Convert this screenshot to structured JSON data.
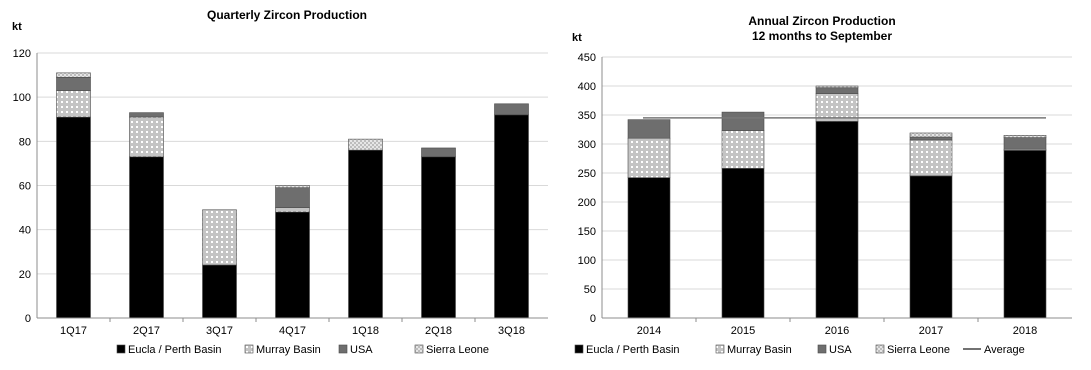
{
  "colors": {
    "eucla": "#000000",
    "murray": "#c4c4c4",
    "usa": "#6e6e6e",
    "sierra": "#dedede",
    "average": "#777777",
    "axis": "#8c8c8c",
    "grid": "#d9d9d9"
  },
  "chart_data": [
    {
      "type": "bar",
      "stacked": true,
      "title": "Quarterly Zircon Production",
      "ylabel": "kt",
      "xlabel": "",
      "ylim": [
        0,
        120
      ],
      "yticks": [
        0,
        20,
        40,
        60,
        80,
        100,
        120
      ],
      "grid": true,
      "legend": "bottom",
      "categories": [
        "1Q17",
        "2Q17",
        "3Q17",
        "4Q17",
        "1Q18",
        "2Q18",
        "3Q18"
      ],
      "series": [
        {
          "name": "Eucla / Perth Basin",
          "color_key": "eucla",
          "pattern": "solid",
          "values": [
            91,
            73,
            24,
            48,
            76,
            73,
            92
          ]
        },
        {
          "name": "Murray Basin",
          "color_key": "murray",
          "pattern": "dots",
          "values": [
            12,
            18,
            25,
            2,
            0,
            0,
            0
          ]
        },
        {
          "name": "USA",
          "color_key": "usa",
          "pattern": "solid",
          "values": [
            6,
            2,
            0,
            9,
            0,
            4,
            5
          ]
        },
        {
          "name": "Sierra Leone",
          "color_key": "sierra",
          "pattern": "hatch",
          "values": [
            2,
            0,
            0,
            1,
            5,
            0,
            0
          ]
        }
      ]
    },
    {
      "type": "bar",
      "stacked": true,
      "title": "Annual Zircon Production",
      "subtitle": "12 months to September",
      "ylabel": "kt",
      "xlabel": "",
      "ylim": [
        0,
        450
      ],
      "yticks": [
        0,
        50,
        100,
        150,
        200,
        250,
        300,
        350,
        400,
        450
      ],
      "grid": true,
      "legend": "bottom",
      "categories": [
        "2014",
        "2015",
        "2016",
        "2017",
        "2018"
      ],
      "series": [
        {
          "name": "Eucla / Perth Basin",
          "color_key": "eucla",
          "pattern": "solid",
          "values": [
            242,
            258,
            339,
            245,
            289
          ]
        },
        {
          "name": "Murray Basin",
          "color_key": "murray",
          "pattern": "dots",
          "values": [
            68,
            65,
            48,
            62,
            2
          ]
        },
        {
          "name": "USA",
          "color_key": "usa",
          "pattern": "solid",
          "values": [
            32,
            32,
            10,
            5,
            20
          ]
        },
        {
          "name": "Sierra Leone",
          "color_key": "sierra",
          "pattern": "hatch",
          "values": [
            0,
            0,
            3,
            7,
            4
          ]
        }
      ],
      "average": {
        "name": "Average",
        "value": 345
      }
    }
  ]
}
